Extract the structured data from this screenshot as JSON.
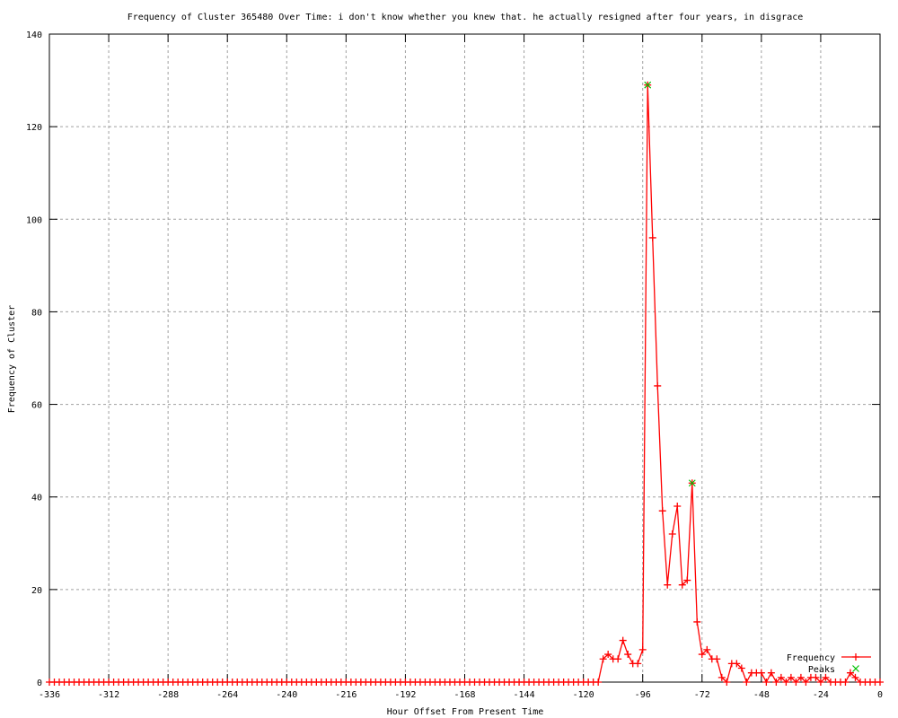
{
  "chart_data": {
    "type": "line",
    "title": "Frequency of Cluster 365480 Over Time: i don't know whether you knew that. he actually resigned after four years, in disgrace",
    "xlabel": "Hour Offset From Present Time",
    "ylabel": "Frequency of Cluster",
    "xlim": [
      -336,
      0
    ],
    "ylim": [
      0,
      140
    ],
    "xticks": [
      -336,
      -312,
      -288,
      -264,
      -240,
      -216,
      -192,
      -168,
      -144,
      -120,
      -96,
      -72,
      -48,
      -24,
      0
    ],
    "yticks": [
      0,
      20,
      40,
      60,
      80,
      100,
      120,
      140
    ],
    "grid": true,
    "legend_placement": "bottom-right",
    "x_step": 2,
    "nonzero_points": {
      "-112": 5,
      "-110": 6,
      "-108": 5,
      "-106": 5,
      "-104": 9,
      "-102": 6,
      "-100": 4,
      "-98": 4,
      "-96": 7,
      "-94": 129,
      "-92": 96,
      "-90": 64,
      "-88": 37,
      "-86": 21,
      "-84": 32,
      "-82": 38,
      "-80": 21,
      "-78": 22,
      "-76": 43,
      "-74": 13,
      "-72": 6,
      "-70": 7,
      "-68": 5,
      "-66": 5,
      "-64": 1,
      "-60": 4,
      "-58": 4,
      "-56": 3,
      "-52": 2,
      "-50": 2,
      "-48": 2,
      "-44": 2,
      "-40": 1,
      "-36": 1,
      "-32": 1,
      "-28": 1,
      "-26": 1,
      "-22": 1,
      "-12": 2,
      "-10": 1
    },
    "series": [
      {
        "name": "Frequency",
        "color": "#ff0000",
        "marker": "plus"
      },
      {
        "name": "Peaks",
        "color": "#00c000",
        "marker": "cross",
        "points": [
          [
            -94,
            129
          ],
          [
            -76,
            43
          ]
        ]
      }
    ]
  }
}
